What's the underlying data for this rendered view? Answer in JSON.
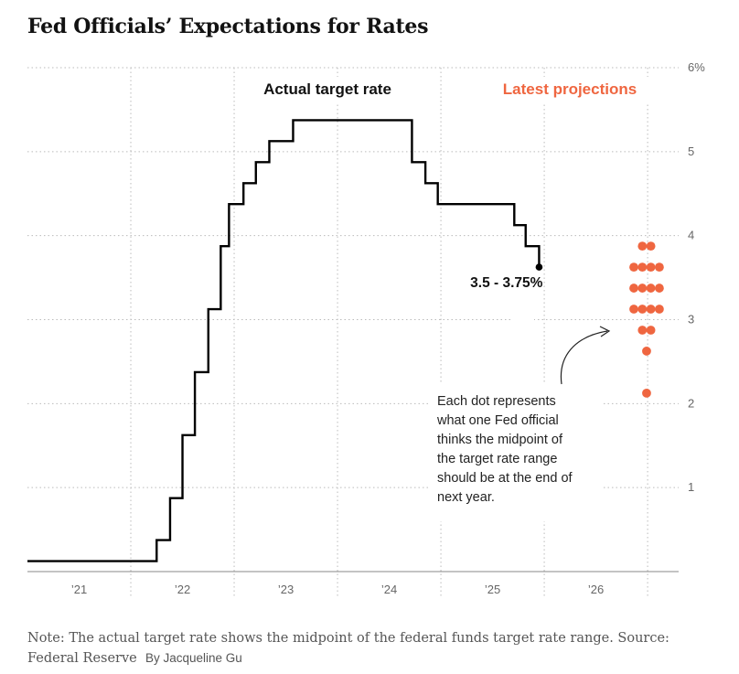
{
  "header": {
    "title": "Fed Officials’ Expectations for Rates"
  },
  "chart_data": {
    "type": "step-line-with-dots",
    "title": "Fed Officials’ Expectations for Rates",
    "ylim": [
      0,
      6
    ],
    "xlim": [
      2021.0,
      2027.3
    ],
    "y_ticks": [
      {
        "value": 1,
        "label": "1"
      },
      {
        "value": 2,
        "label": "2"
      },
      {
        "value": 3,
        "label": "3"
      },
      {
        "value": 4,
        "label": "4"
      },
      {
        "value": 5,
        "label": "5"
      },
      {
        "value": 6,
        "label": "6%"
      }
    ],
    "x_ticks": [
      {
        "value": 2021.5,
        "label": "’21",
        "boundary": 2022.0
      },
      {
        "value": 2022.5,
        "label": "’22",
        "boundary": 2023.0
      },
      {
        "value": 2023.5,
        "label": "’23",
        "boundary": 2024.0
      },
      {
        "value": 2024.5,
        "label": "’24",
        "boundary": 2025.0
      },
      {
        "value": 2025.5,
        "label": "’25",
        "boundary": 2026.0
      },
      {
        "value": 2026.5,
        "label": "’26",
        "boundary": 2027.0
      }
    ],
    "grid": true,
    "series": [
      {
        "name": "Actual target rate",
        "step_points": [
          [
            2021.0,
            0.125
          ],
          [
            2022.25,
            0.375
          ],
          [
            2022.38,
            0.875
          ],
          [
            2022.5,
            1.625
          ],
          [
            2022.62,
            2.375
          ],
          [
            2022.75,
            3.125
          ],
          [
            2022.87,
            3.875
          ],
          [
            2022.95,
            4.375
          ],
          [
            2023.09,
            4.625
          ],
          [
            2023.21,
            4.875
          ],
          [
            2023.34,
            5.125
          ],
          [
            2023.57,
            5.375
          ],
          [
            2024.72,
            4.875
          ],
          [
            2024.85,
            4.625
          ],
          [
            2024.97,
            4.375
          ],
          [
            2025.71,
            4.125
          ],
          [
            2025.82,
            3.875
          ],
          [
            2025.95,
            3.625
          ]
        ],
        "end_x": 2025.95,
        "end_label": "3.5 - 3.75%"
      }
    ],
    "projections": {
      "name": "Latest projections",
      "center_x": 2026.99,
      "color": "#ef6640",
      "dots": [
        {
          "value": 3.875,
          "count": 2
        },
        {
          "value": 3.625,
          "count": 4
        },
        {
          "value": 3.375,
          "count": 4
        },
        {
          "value": 3.125,
          "count": 4
        },
        {
          "value": 2.875,
          "count": 2
        },
        {
          "value": 2.625,
          "count": 1
        },
        {
          "value": 2.125,
          "count": 1
        }
      ]
    },
    "annotation": {
      "lines": [
        "Each dot represents",
        "what one Fed official",
        "thinks the midpoint of",
        "the target rate range",
        "should be at the end of",
        "next year."
      ]
    },
    "colors": {
      "actual": "#000000",
      "projection": "#ef6640",
      "grid": "#bbbbbb"
    }
  },
  "footer": {
    "note": "Note: The actual target rate shows the midpoint of the federal funds target rate range.  Source: Federal Reserve",
    "byline": "By Jacqueline Gu"
  }
}
